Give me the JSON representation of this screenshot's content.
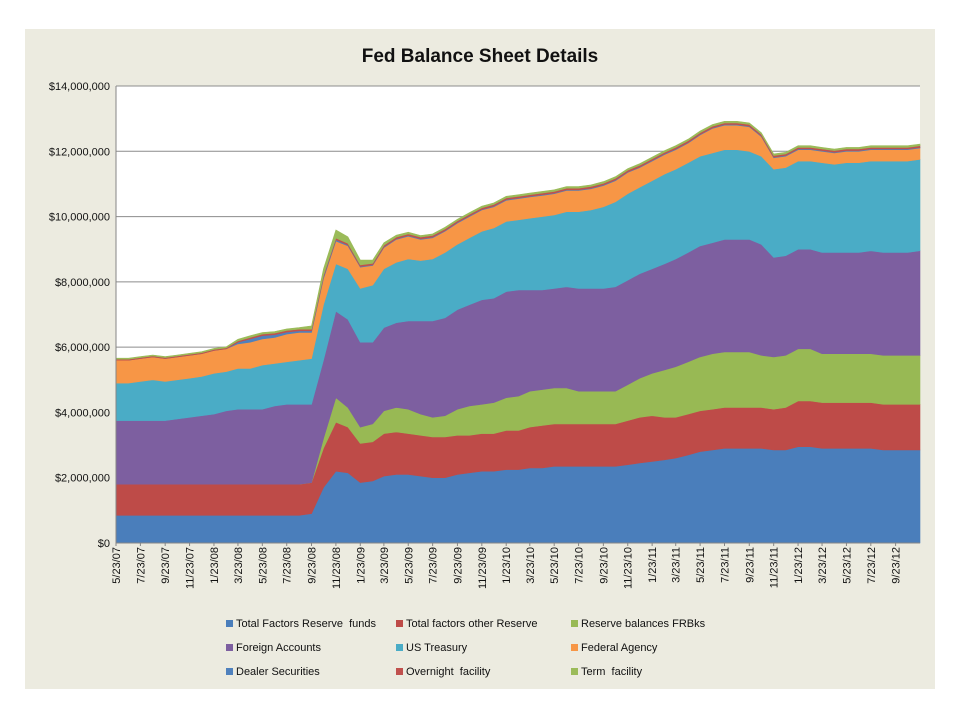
{
  "chart_data": {
    "type": "area",
    "stacked": true,
    "title": "Fed Balance Sheet Details",
    "xlabel": "",
    "ylabel": "",
    "ylim": [
      0,
      14000000
    ],
    "y_ticks": [
      "$0",
      "$2,000,000",
      "$4,000,000",
      "$6,000,000",
      "$8,000,000",
      "$10,000,000",
      "$12,000,000",
      "$14,000,000"
    ],
    "y_tick_values": [
      0,
      2000000,
      4000000,
      6000000,
      8000000,
      10000000,
      12000000,
      14000000
    ],
    "x_ticks": [
      "5/23/07",
      "7/23/07",
      "9/23/07",
      "11/23/07",
      "1/23/08",
      "3/23/08",
      "5/23/08",
      "7/23/08",
      "9/23/08",
      "11/23/08",
      "1/23/09",
      "3/23/09",
      "5/23/09",
      "7/23/09",
      "9/23/09",
      "11/23/09",
      "1/23/10",
      "3/23/10",
      "5/23/10",
      "7/23/10",
      "9/23/10",
      "11/23/10",
      "1/23/11",
      "3/23/11",
      "5/23/11",
      "7/23/11",
      "9/23/11",
      "11/23/11",
      "1/23/12",
      "3/23/12",
      "5/23/12",
      "7/23/12",
      "9/23/12"
    ],
    "grid": true,
    "legend_position": "bottom",
    "x": [
      "5/23/07",
      "6/23/07",
      "7/23/07",
      "8/23/07",
      "9/23/07",
      "10/23/07",
      "11/23/07",
      "12/23/07",
      "1/23/08",
      "2/23/08",
      "3/23/08",
      "4/23/08",
      "5/23/08",
      "6/23/08",
      "7/23/08",
      "8/23/08",
      "9/23/08",
      "10/23/08",
      "11/23/08",
      "12/23/08",
      "1/23/09",
      "2/23/09",
      "3/23/09",
      "4/23/09",
      "5/23/09",
      "6/23/09",
      "7/23/09",
      "8/23/09",
      "9/23/09",
      "10/23/09",
      "11/23/09",
      "12/23/09",
      "1/23/10",
      "2/23/10",
      "3/23/10",
      "4/23/10",
      "5/23/10",
      "6/23/10",
      "7/23/10",
      "8/23/10",
      "9/23/10",
      "10/23/10",
      "11/23/10",
      "12/23/10",
      "1/23/11",
      "2/23/11",
      "3/23/11",
      "4/23/11",
      "5/23/11",
      "6/23/11",
      "7/23/11",
      "8/23/11",
      "9/23/11",
      "10/23/11",
      "11/23/11",
      "12/23/11",
      "1/23/12",
      "2/23/12",
      "3/23/12",
      "4/23/12",
      "5/23/12",
      "6/23/12",
      "7/23/12",
      "8/23/12",
      "9/23/12",
      "10/23/12",
      "11/23/12"
    ],
    "series": [
      {
        "name": "Total Factors Reserve  funds",
        "color": "#4a7ebb",
        "values": [
          850000,
          850000,
          850000,
          850000,
          850000,
          850000,
          850000,
          850000,
          850000,
          850000,
          850000,
          850000,
          850000,
          850000,
          850000,
          850000,
          900000,
          1700000,
          2200000,
          2150000,
          1850000,
          1900000,
          2050000,
          2100000,
          2100000,
          2050000,
          2000000,
          2000000,
          2100000,
          2150000,
          2200000,
          2200000,
          2250000,
          2250000,
          2300000,
          2300000,
          2350000,
          2350000,
          2350000,
          2350000,
          2350000,
          2350000,
          2400000,
          2450000,
          2500000,
          2550000,
          2600000,
          2700000,
          2800000,
          2850000,
          2900000,
          2900000,
          2900000,
          2900000,
          2850000,
          2850000,
          2950000,
          2950000,
          2900000,
          2900000,
          2900000,
          2900000,
          2900000,
          2850000,
          2850000,
          2850000,
          2850000
        ]
      },
      {
        "name": "Total factors other Reserve",
        "color": "#be4b48",
        "values": [
          950000,
          950000,
          950000,
          950000,
          950000,
          950000,
          950000,
          950000,
          950000,
          950000,
          950000,
          950000,
          950000,
          950000,
          950000,
          950000,
          950000,
          1200000,
          1500000,
          1400000,
          1200000,
          1200000,
          1300000,
          1300000,
          1250000,
          1250000,
          1250000,
          1250000,
          1200000,
          1150000,
          1150000,
          1150000,
          1200000,
          1200000,
          1250000,
          1300000,
          1300000,
          1300000,
          1300000,
          1300000,
          1300000,
          1300000,
          1350000,
          1400000,
          1400000,
          1300000,
          1250000,
          1250000,
          1250000,
          1250000,
          1250000,
          1250000,
          1250000,
          1250000,
          1250000,
          1300000,
          1400000,
          1400000,
          1400000,
          1400000,
          1400000,
          1400000,
          1400000,
          1400000,
          1400000,
          1400000,
          1400000
        ]
      },
      {
        "name": "Reserve balances FRBks",
        "color": "#98b954",
        "values": [
          0,
          0,
          0,
          0,
          0,
          0,
          0,
          0,
          0,
          0,
          0,
          0,
          0,
          0,
          0,
          0,
          0,
          300000,
          750000,
          600000,
          500000,
          550000,
          700000,
          750000,
          750000,
          650000,
          600000,
          650000,
          800000,
          900000,
          900000,
          950000,
          1000000,
          1050000,
          1100000,
          1100000,
          1100000,
          1100000,
          1000000,
          1000000,
          1000000,
          1000000,
          1100000,
          1200000,
          1300000,
          1450000,
          1550000,
          1600000,
          1650000,
          1700000,
          1700000,
          1700000,
          1700000,
          1600000,
          1600000,
          1600000,
          1600000,
          1600000,
          1500000,
          1500000,
          1500000,
          1500000,
          1500000,
          1500000,
          1500000,
          1500000,
          1500000
        ]
      },
      {
        "name": "Foreign Accounts",
        "color": "#7d5fa0",
        "values": [
          1950000,
          1950000,
          1950000,
          1950000,
          1950000,
          2000000,
          2050000,
          2100000,
          2150000,
          2250000,
          2300000,
          2300000,
          2300000,
          2400000,
          2450000,
          2450000,
          2400000,
          2400000,
          2650000,
          2700000,
          2600000,
          2500000,
          2550000,
          2600000,
          2700000,
          2850000,
          2950000,
          3000000,
          3050000,
          3100000,
          3200000,
          3200000,
          3250000,
          3250000,
          3100000,
          3050000,
          3050000,
          3100000,
          3150000,
          3150000,
          3150000,
          3200000,
          3200000,
          3200000,
          3200000,
          3250000,
          3300000,
          3350000,
          3400000,
          3400000,
          3450000,
          3450000,
          3450000,
          3400000,
          3050000,
          3050000,
          3050000,
          3050000,
          3100000,
          3100000,
          3100000,
          3100000,
          3150000,
          3150000,
          3150000,
          3150000,
          3200000
        ]
      },
      {
        "name": "US Treasury",
        "color": "#4aacc6",
        "values": [
          1150000,
          1150000,
          1200000,
          1250000,
          1200000,
          1200000,
          1200000,
          1200000,
          1250000,
          1200000,
          1250000,
          1250000,
          1350000,
          1300000,
          1300000,
          1350000,
          1400000,
          1700000,
          1450000,
          1550000,
          1650000,
          1750000,
          1800000,
          1850000,
          1900000,
          1850000,
          1900000,
          2000000,
          2000000,
          2050000,
          2100000,
          2150000,
          2150000,
          2150000,
          2200000,
          2250000,
          2250000,
          2300000,
          2350000,
          2400000,
          2500000,
          2600000,
          2650000,
          2650000,
          2700000,
          2750000,
          2750000,
          2750000,
          2750000,
          2750000,
          2750000,
          2750000,
          2700000,
          2700000,
          2700000,
          2700000,
          2700000,
          2700000,
          2750000,
          2700000,
          2750000,
          2750000,
          2750000,
          2800000,
          2800000,
          2800000,
          2800000
        ]
      },
      {
        "name": "Federal Agency",
        "color": "#f79646",
        "values": [
          700000,
          700000,
          700000,
          700000,
          700000,
          700000,
          700000,
          700000,
          700000,
          700000,
          750000,
          800000,
          800000,
          800000,
          850000,
          850000,
          800000,
          800000,
          700000,
          700000,
          650000,
          600000,
          650000,
          700000,
          700000,
          650000,
          650000,
          650000,
          650000,
          650000,
          650000,
          650000,
          650000,
          650000,
          650000,
          650000,
          650000,
          650000,
          650000,
          650000,
          650000,
          650000,
          650000,
          600000,
          600000,
          600000,
          600000,
          600000,
          650000,
          750000,
          750000,
          750000,
          750000,
          600000,
          350000,
          350000,
          350000,
          350000,
          350000,
          350000,
          350000,
          350000,
          350000,
          350000,
          350000,
          350000,
          350000
        ]
      },
      {
        "name": "Dealer Securities",
        "color": "#4f81bd",
        "values": [
          0,
          0,
          0,
          0,
          0,
          0,
          0,
          0,
          0,
          0,
          50000,
          100000,
          100000,
          80000,
          60000,
          50000,
          50000,
          50000,
          40000,
          30000,
          20000,
          20000,
          20000,
          20000,
          20000,
          20000,
          20000,
          20000,
          20000,
          20000,
          20000,
          20000,
          20000,
          20000,
          20000,
          20000,
          20000,
          20000,
          20000,
          20000,
          20000,
          20000,
          20000,
          20000,
          20000,
          20000,
          20000,
          20000,
          20000,
          20000,
          20000,
          20000,
          20000,
          20000,
          20000,
          20000,
          20000,
          20000,
          20000,
          20000,
          20000,
          20000,
          20000,
          20000,
          20000,
          20000,
          20000
        ]
      },
      {
        "name": "Overnight  facility",
        "color": "#c0504d",
        "values": [
          30000,
          30000,
          30000,
          30000,
          30000,
          30000,
          30000,
          30000,
          30000,
          30000,
          40000,
          50000,
          50000,
          50000,
          50000,
          50000,
          50000,
          50000,
          50000,
          50000,
          50000,
          50000,
          50000,
          50000,
          50000,
          50000,
          50000,
          50000,
          50000,
          50000,
          50000,
          50000,
          50000,
          50000,
          50000,
          50000,
          50000,
          50000,
          50000,
          50000,
          50000,
          50000,
          50000,
          50000,
          50000,
          50000,
          50000,
          50000,
          50000,
          50000,
          50000,
          50000,
          50000,
          50000,
          50000,
          50000,
          50000,
          50000,
          50000,
          50000,
          50000,
          50000,
          50000,
          50000,
          50000,
          50000,
          50000
        ]
      },
      {
        "name": "Term  facility",
        "color": "#9bbb59",
        "values": [
          30000,
          30000,
          30000,
          30000,
          30000,
          30000,
          30000,
          30000,
          30000,
          30000,
          50000,
          50000,
          50000,
          50000,
          50000,
          50000,
          100000,
          200000,
          250000,
          200000,
          150000,
          100000,
          80000,
          60000,
          50000,
          50000,
          50000,
          50000,
          50000,
          50000,
          50000,
          50000,
          50000,
          50000,
          50000,
          50000,
          50000,
          50000,
          50000,
          50000,
          50000,
          50000,
          50000,
          50000,
          50000,
          50000,
          50000,
          50000,
          50000,
          50000,
          50000,
          50000,
          50000,
          50000,
          50000,
          50000,
          50000,
          50000,
          50000,
          50000,
          50000,
          50000,
          50000,
          50000,
          50000,
          50000,
          50000
        ]
      }
    ]
  }
}
